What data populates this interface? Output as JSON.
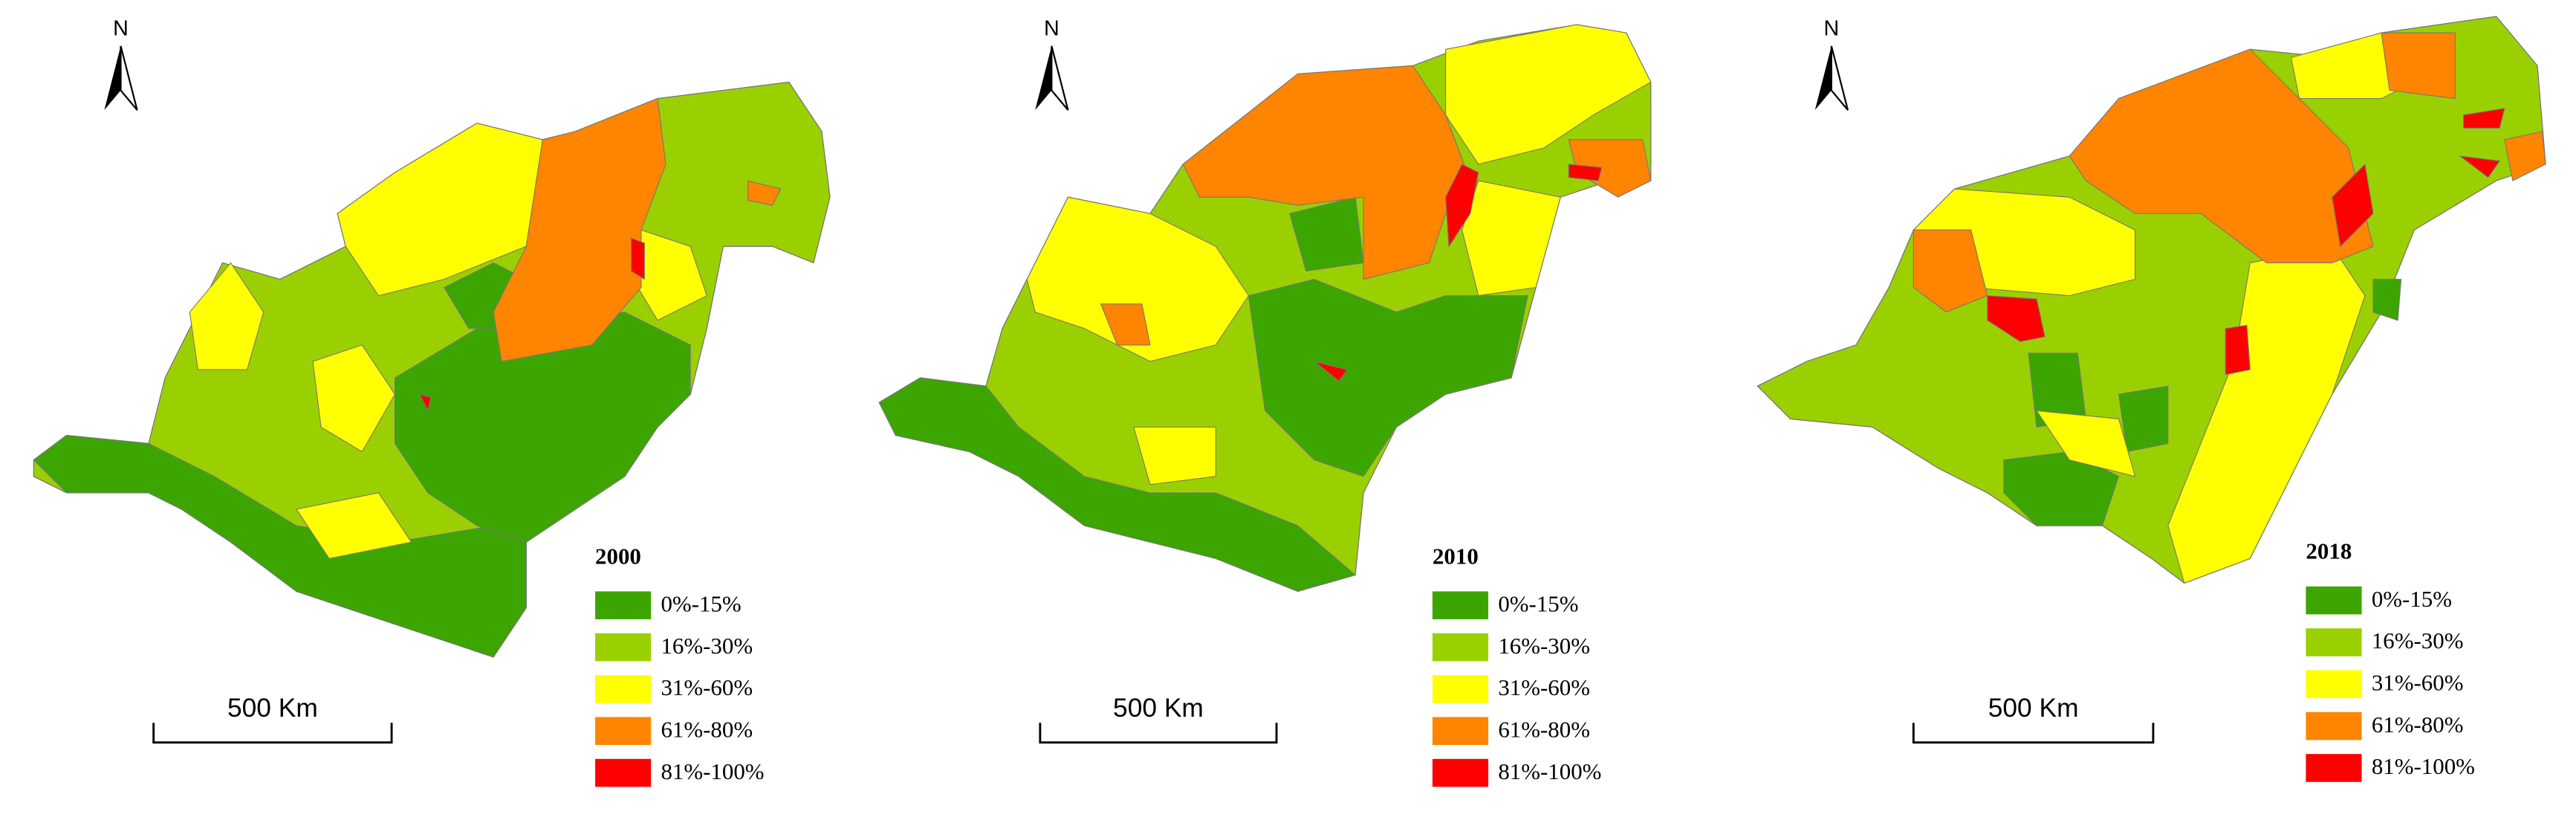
{
  "panels": [
    {
      "year": "2000",
      "north": "N",
      "scale": "500 Km"
    },
    {
      "year": "2010",
      "north": "N",
      "scale": "500 Km"
    },
    {
      "year": "2018",
      "north": "N",
      "scale": "500 Km"
    }
  ],
  "legend": [
    {
      "label": "0%-15%",
      "color": "#3ca500"
    },
    {
      "label": "16%-30%",
      "color": "#9bd000"
    },
    {
      "label": "31%-60%",
      "color": "#ffff00"
    },
    {
      "label": "61%-80%",
      "color": "#ff8400"
    },
    {
      "label": "81%-100%",
      "color": "#ff0000"
    }
  ]
}
